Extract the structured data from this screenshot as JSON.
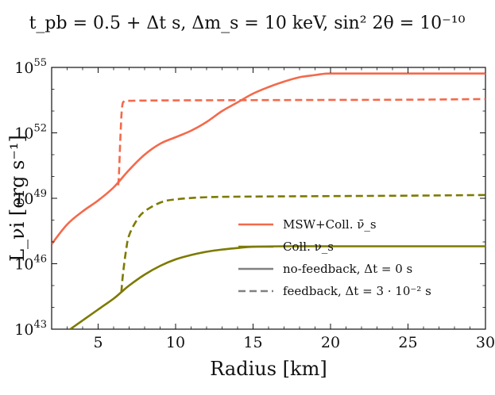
{
  "chart_data": {
    "type": "line",
    "title": "t_pb = 0.5 + Δt s,  Δm_s = 10 keV, sin² 2θ = 10⁻¹⁰",
    "xlabel": "Radius [km]",
    "ylabel": "L_νi [erg s⁻¹]",
    "xlim": [
      2,
      30
    ],
    "ylim_log10": [
      43,
      55
    ],
    "yscale": "log",
    "x_ticks": [
      5,
      10,
      15,
      20,
      25,
      30
    ],
    "x_tick_labels": [
      "5",
      "10",
      "15",
      "20",
      "25",
      "30"
    ],
    "y_ticks_log10": [
      43,
      46,
      49,
      52,
      55
    ],
    "y_tick_labels": [
      {
        "base": "10",
        "exp": "43"
      },
      {
        "base": "10",
        "exp": "46"
      },
      {
        "base": "10",
        "exp": "49"
      },
      {
        "base": "10",
        "exp": "52"
      },
      {
        "base": "10",
        "exp": "55"
      }
    ],
    "legend_position": "lower-right",
    "series": [
      {
        "name": "MSW+Coll. ν̄_s, no-feedback",
        "color": "#f4694b",
        "style": "solid",
        "x": [
          2,
          3,
          4,
          5,
          6,
          7,
          8,
          9,
          10,
          11,
          12,
          13,
          14,
          15,
          16,
          17,
          18,
          19,
          19.5,
          20,
          22,
          25,
          30
        ],
        "log10_y": [
          46.9,
          47.8,
          48.4,
          48.9,
          49.5,
          50.3,
          51.0,
          51.5,
          51.8,
          52.1,
          52.5,
          53.0,
          53.4,
          53.8,
          54.1,
          54.35,
          54.55,
          54.65,
          54.7,
          54.72,
          54.72,
          54.72,
          54.72
        ]
      },
      {
        "name": "MSW+Coll. ν̄_s, feedback",
        "color": "#f4694b",
        "style": "dashed",
        "x": [
          6.3,
          6.35,
          6.45,
          6.55,
          6.7,
          7,
          8,
          10,
          15,
          20,
          25,
          30
        ],
        "log10_y": [
          49.6,
          50.2,
          52.0,
          53.2,
          53.45,
          53.47,
          53.48,
          53.49,
          53.5,
          53.51,
          53.52,
          53.55
        ]
      },
      {
        "name": "Coll. ν_s, no-feedback",
        "color": "#7d7a00",
        "style": "solid",
        "x": [
          3.2,
          4,
          5,
          6,
          6.5,
          7,
          8,
          9,
          10,
          11,
          12,
          13,
          14,
          15,
          17,
          20,
          25,
          30
        ],
        "log10_y": [
          43.0,
          43.4,
          43.9,
          44.4,
          44.7,
          45.0,
          45.5,
          45.9,
          46.2,
          46.4,
          46.55,
          46.65,
          46.72,
          46.78,
          46.8,
          46.8,
          46.8,
          46.8
        ]
      },
      {
        "name": "Coll. ν_s, feedback",
        "color": "#7d7a00",
        "style": "dashed",
        "x": [
          6.5,
          6.6,
          6.8,
          7,
          7.5,
          8,
          9,
          10,
          12,
          15,
          20,
          25,
          30
        ],
        "log10_y": [
          44.7,
          45.5,
          46.6,
          47.3,
          48.0,
          48.4,
          48.8,
          48.95,
          49.05,
          49.08,
          49.1,
          49.12,
          49.15
        ]
      }
    ],
    "legend": [
      {
        "label": "MSW+Coll. ν̄_s",
        "color": "#f4694b",
        "style": "solid"
      },
      {
        "label": "Coll. ν_s",
        "color": "#7d7a00",
        "style": "solid"
      },
      {
        "label": "no-feedback, Δt = 0 s",
        "color": "#808080",
        "style": "solid"
      },
      {
        "label": "feedback, Δt = 3 · 10⁻² s",
        "color": "#808080",
        "style": "dashed"
      }
    ]
  }
}
